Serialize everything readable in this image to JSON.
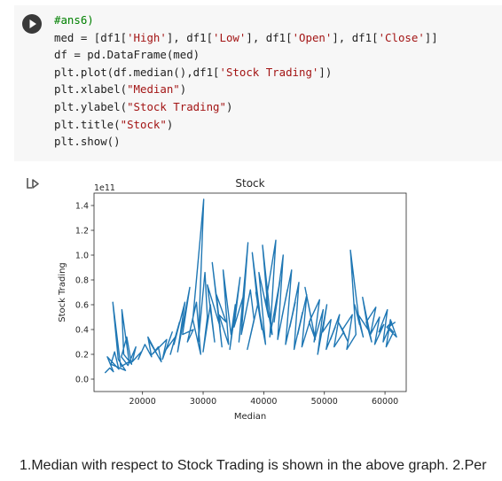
{
  "code_cell": {
    "comment": "#ans6)",
    "lines": {
      "l2a": "med = [df1[",
      "l2s1": "'High'",
      "l2b": "], df1[",
      "l2s2": "'Low'",
      "l2c": "], df1[",
      "l2s3": "'Open'",
      "l2d": "], df1[",
      "l2s4": "'Close'",
      "l2e": "]]",
      "l3": "df = pd.DataFrame(med)",
      "l4a": "plt.plot(df.median(),df1[",
      "l4s": "'Stock Trading'",
      "l4b": "])",
      "l5a": "plt.xlabel(",
      "l5s": "\"Median\"",
      "l5b": ")",
      "l6a": "plt.ylabel(",
      "l6s": "\"Stock Trading\"",
      "l6b": ")",
      "l7a": "plt.title(",
      "l7s": "\"Stock\"",
      "l7b": ")",
      "l8": "plt.show()"
    }
  },
  "output_icon": "output-redirect-icon",
  "chart_data": {
    "type": "line",
    "title": "Stock",
    "xlabel": "Median",
    "ylabel": "Stock Trading",
    "y_offset_label": "1e11",
    "xlim": [
      12000,
      63500
    ],
    "ylim": [
      -0.1,
      1.5
    ],
    "xticks": [
      20000,
      30000,
      40000,
      50000,
      60000
    ],
    "xtick_labels": [
      "20000",
      "30000",
      "40000",
      "50000",
      "60000"
    ],
    "yticks": [
      0.0,
      0.2,
      0.4,
      0.6,
      0.8,
      1.0,
      1.2,
      1.4
    ],
    "ytick_labels": [
      "0.0",
      "0.2",
      "0.4",
      "0.6",
      "0.8",
      "1.0",
      "1.2",
      "1.4"
    ],
    "grid": false,
    "line_color": "#1f77b4",
    "series": [
      {
        "x": [
          13800,
          14600,
          15200,
          14200,
          16100,
          15400,
          14800,
          17200,
          16000,
          15100,
          16400,
          17800,
          16600,
          16900,
          18200,
          17400,
          16500,
          17600,
          18900,
          18300,
          19800,
          19300,
          20400,
          21500,
          20900,
          22400,
          21200,
          23100,
          22600,
          21600,
          24000,
          23300,
          24900,
          23900,
          25400,
          24600,
          26100,
          25200,
          27000,
          25800,
          27800,
          26600,
          28400,
          27400,
          28900,
          29600,
          28300,
          30100,
          29200,
          30300,
          30700,
          30000,
          31200,
          31900,
          30700,
          32800,
          31500,
          33100,
          32200,
          33800,
          32600,
          34200,
          33300,
          34600,
          35300,
          34400,
          36100,
          35100,
          36700,
          35900,
          37400,
          36300,
          37800,
          38400,
          37300,
          39000,
          38100,
          39700,
          38700,
          40300,
          39200,
          40800,
          39800,
          41400,
          40400,
          42000,
          41000,
          42700,
          41700,
          43200,
          42300,
          43900,
          43000,
          44600,
          43600,
          45200,
          44300,
          45800,
          45000,
          46400,
          45600,
          47100,
          46300,
          47800,
          46800,
          48500,
          47500,
          49200,
          48300,
          49800,
          48900,
          50400,
          49700,
          51100,
          50300,
          51800,
          51000,
          52500,
          51600,
          53200,
          52300,
          53900,
          53000,
          54600,
          53700,
          55200,
          54300,
          55800,
          55000,
          56400,
          55600,
          57200,
          56300,
          57800,
          56900,
          58500,
          57600,
          59100,
          58300,
          59800,
          59000,
          60400,
          59700,
          61100,
          60300,
          61900,
          60900,
          60200,
          61400,
          60600,
          61700
        ],
        "y": [
          0.05,
          0.09,
          0.06,
          0.18,
          0.08,
          0.22,
          0.12,
          0.07,
          0.16,
          0.62,
          0.1,
          0.14,
          0.56,
          0.2,
          0.12,
          0.34,
          0.18,
          0.11,
          0.26,
          0.14,
          0.22,
          0.16,
          0.28,
          0.18,
          0.34,
          0.2,
          0.3,
          0.14,
          0.26,
          0.2,
          0.32,
          0.16,
          0.38,
          0.24,
          0.34,
          0.2,
          0.46,
          0.28,
          0.62,
          0.22,
          0.74,
          0.36,
          0.4,
          0.3,
          0.62,
          0.2,
          0.48,
          1.45,
          0.3,
          0.86,
          0.5,
          0.22,
          0.6,
          0.3,
          0.76,
          0.42,
          0.94,
          0.26,
          0.68,
          0.46,
          0.52,
          0.28,
          0.88,
          0.36,
          0.6,
          0.24,
          0.82,
          0.42,
          0.68,
          0.3,
          1.1,
          0.36,
          0.72,
          0.48,
          0.24,
          0.6,
          1.02,
          0.4,
          0.7,
          0.28,
          0.86,
          0.5,
          1.08,
          0.36,
          0.64,
          1.12,
          0.34,
          0.8,
          0.46,
          1.0,
          0.32,
          0.72,
          0.5,
          0.88,
          0.28,
          0.62,
          0.42,
          0.78,
          0.24,
          0.54,
          0.36,
          0.68,
          0.26,
          0.5,
          0.74,
          0.32,
          0.46,
          0.64,
          0.3,
          0.56,
          0.2,
          0.6,
          0.38,
          0.48,
          0.24,
          0.42,
          0.32,
          0.52,
          0.26,
          0.38,
          0.46,
          0.3,
          0.4,
          0.52,
          0.24,
          0.36,
          1.04,
          0.44,
          0.6,
          0.34,
          0.52,
          0.4,
          0.66,
          0.3,
          0.46,
          0.58,
          0.36,
          0.5,
          0.28,
          0.44,
          0.38,
          0.56,
          0.3,
          0.46,
          0.42,
          0.34,
          0.48,
          0.26,
          0.38,
          0.42,
          0.46
        ]
      }
    ]
  },
  "footer": {
    "text": "1.Median with respect to Stock Trading is shown in the above graph. 2.Per"
  }
}
